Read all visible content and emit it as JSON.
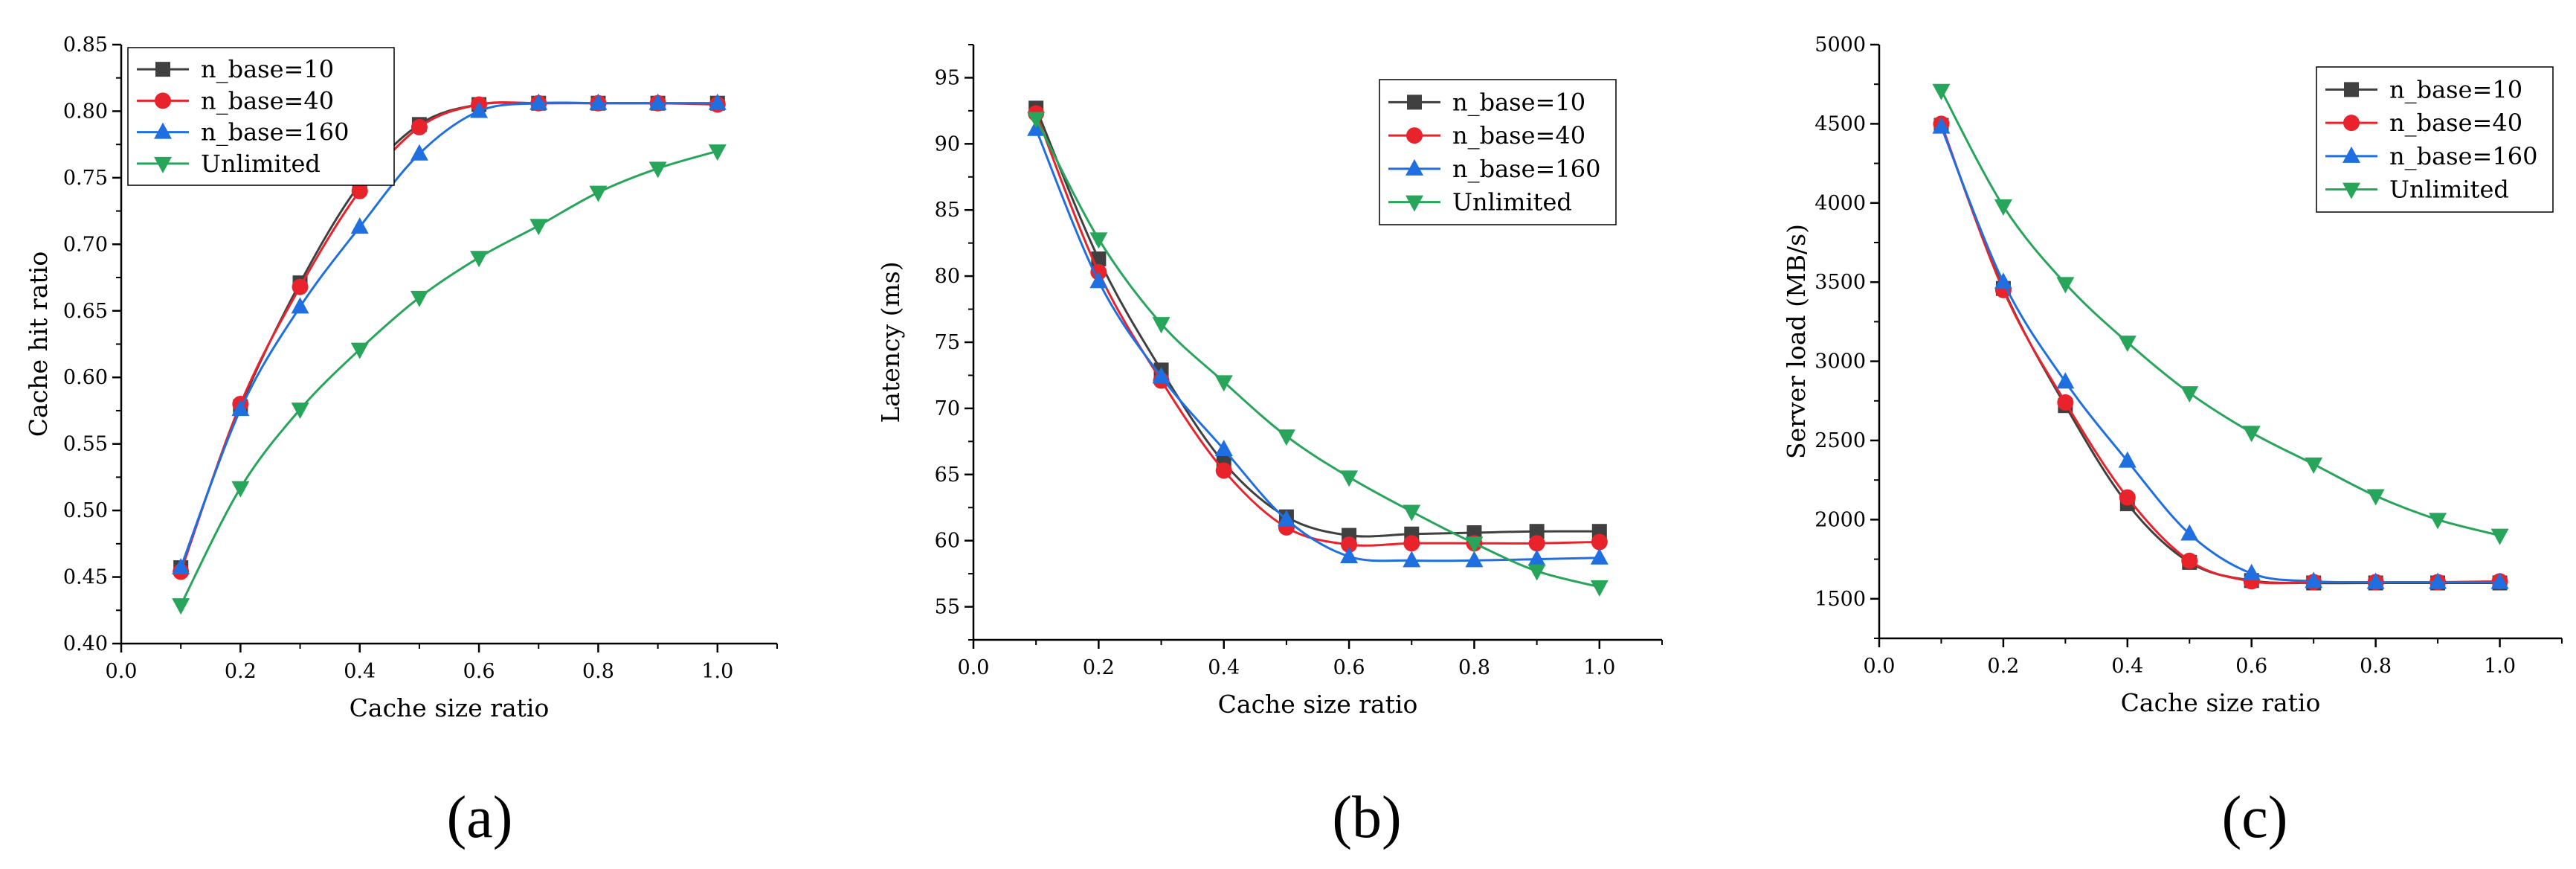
{
  "series_colors": [
    "#404040",
    "#e8232b",
    "#1f6fe0",
    "#27a55a"
  ],
  "series_markers": [
    "square",
    "circle",
    "triangle-up",
    "triangle-down"
  ],
  "chart_data": [
    {
      "type": "line",
      "caption": "(a)",
      "xlabel": "Cache size ratio",
      "ylabel": "Cache hit ratio",
      "xlim": [
        0.0,
        1.1
      ],
      "ylim": [
        0.4,
        0.85
      ],
      "xticks": [
        "0.0",
        "0.2",
        "0.4",
        "0.6",
        "0.8",
        "1.0"
      ],
      "yticks": [
        "0.40",
        "0.45",
        "0.50",
        "0.55",
        "0.60",
        "0.65",
        "0.70",
        "0.75",
        "0.80",
        "0.85"
      ],
      "legend_position": "top-left",
      "x": [
        0.1,
        0.2,
        0.3,
        0.4,
        0.5,
        0.6,
        0.7,
        0.8,
        0.9,
        1.0
      ],
      "series": [
        {
          "name": "n_base=10",
          "values": [
            0.457,
            0.578,
            0.671,
            0.745,
            0.79,
            0.805,
            0.806,
            0.806,
            0.806,
            0.806
          ]
        },
        {
          "name": "n_base=40",
          "values": [
            0.454,
            0.58,
            0.668,
            0.74,
            0.788,
            0.805,
            0.806,
            0.806,
            0.806,
            0.805
          ]
        },
        {
          "name": "n_base=160",
          "values": [
            0.457,
            0.576,
            0.653,
            0.713,
            0.768,
            0.8,
            0.806,
            0.806,
            0.806,
            0.806
          ]
        },
        {
          "name": "Unlimited",
          "values": [
            0.429,
            0.517,
            0.576,
            0.621,
            0.66,
            0.69,
            0.714,
            0.739,
            0.757,
            0.77
          ]
        }
      ]
    },
    {
      "type": "line",
      "caption": "(b)",
      "xlabel": "Cache size ratio",
      "ylabel": "Latency (ms)",
      "xlim": [
        0.0,
        1.1
      ],
      "ylim": [
        52.5,
        97.5
      ],
      "xticks": [
        "0.0",
        "0.2",
        "0.4",
        "0.6",
        "0.8",
        "1.0"
      ],
      "yticks": [
        "55",
        "60",
        "65",
        "70",
        "75",
        "80",
        "85",
        "90",
        "95"
      ],
      "legend_position": "top-right",
      "x": [
        0.1,
        0.2,
        0.3,
        0.4,
        0.5,
        0.6,
        0.7,
        0.8,
        0.9,
        1.0
      ],
      "series": [
        {
          "name": "n_base=10",
          "values": [
            92.7,
            81.3,
            72.9,
            65.9,
            61.8,
            60.4,
            60.5,
            60.6,
            60.7,
            60.7
          ]
        },
        {
          "name": "n_base=40",
          "values": [
            92.3,
            80.3,
            72.1,
            65.3,
            61.0,
            59.7,
            59.8,
            59.8,
            59.8,
            59.9
          ]
        },
        {
          "name": "n_base=160",
          "values": [
            91.1,
            79.6,
            72.4,
            66.9,
            61.6,
            58.8,
            58.5,
            58.5,
            58.6,
            58.7
          ]
        },
        {
          "name": "Unlimited",
          "values": [
            91.9,
            82.8,
            76.4,
            72.0,
            67.9,
            64.8,
            62.2,
            59.8,
            57.7,
            56.5
          ]
        }
      ]
    },
    {
      "type": "line",
      "caption": "(c)",
      "xlabel": "Cache size ratio",
      "ylabel": "Server load (MB/s)",
      "xlim": [
        0.0,
        1.1
      ],
      "ylim": [
        1250,
        5000
      ],
      "xticks": [
        "0.0",
        "0.2",
        "0.4",
        "0.6",
        "0.8",
        "1.0"
      ],
      "yticks": [
        "1500",
        "2000",
        "2500",
        "3000",
        "3500",
        "4000",
        "4500",
        "5000"
      ],
      "legend_position": "top-right",
      "x": [
        0.1,
        0.2,
        0.3,
        0.4,
        0.5,
        0.6,
        0.7,
        0.8,
        0.9,
        1.0
      ],
      "series": [
        {
          "name": "n_base=10",
          "values": [
            4490,
            3460,
            2720,
            2100,
            1730,
            1615,
            1600,
            1600,
            1600,
            1600
          ]
        },
        {
          "name": "n_base=40",
          "values": [
            4500,
            3450,
            2740,
            2140,
            1740,
            1610,
            1605,
            1605,
            1605,
            1610
          ]
        },
        {
          "name": "n_base=160",
          "values": [
            4480,
            3500,
            2870,
            2370,
            1910,
            1660,
            1610,
            1605,
            1605,
            1605
          ]
        },
        {
          "name": "Unlimited",
          "values": [
            4710,
            3980,
            3490,
            3120,
            2800,
            2550,
            2350,
            2150,
            2000,
            1900
          ]
        }
      ]
    }
  ]
}
